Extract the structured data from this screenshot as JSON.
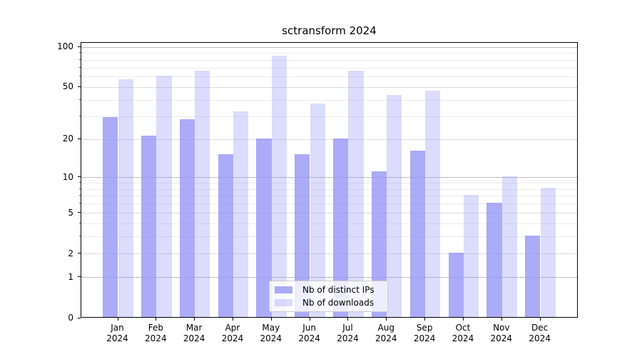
{
  "title": "sctransform 2024",
  "legend": {
    "items": [
      {
        "label": "Nb of distinct IPs",
        "color": "rgba(150,150,245,0.80)"
      },
      {
        "label": "Nb of downloads",
        "color": "rgba(150,150,245,0.33)"
      }
    ]
  },
  "chart_data": {
    "type": "bar",
    "title": "sctransform 2024",
    "categories": [
      "Jan",
      "Feb",
      "Mar",
      "Apr",
      "May",
      "Jun",
      "Jul",
      "Aug",
      "Sep",
      "Oct",
      "Nov",
      "Dec"
    ],
    "year_label": "2024",
    "series": [
      {
        "name": "Nb of distinct IPs",
        "color": "rgba(150,150,245,0.80)",
        "values": [
          29,
          21,
          28,
          15,
          20,
          15,
          20,
          11,
          16,
          2,
          6,
          3
        ]
      },
      {
        "name": "Nb of downloads",
        "color": "rgba(150,150,245,0.33)",
        "values": [
          56,
          60,
          65,
          32,
          85,
          37,
          65,
          43,
          46,
          7,
          10,
          8
        ]
      }
    ],
    "yscale": "log1p",
    "ylim": [
      0,
      108
    ],
    "y_major_ticks": [
      0,
      1,
      2,
      5,
      10,
      20,
      50,
      100
    ],
    "y_minor_ticks": [
      3,
      4,
      6,
      7,
      8,
      9,
      30,
      40,
      60,
      70,
      80,
      90
    ],
    "grid": "horizontal",
    "legend_position": "lower center",
    "xlabel": "",
    "ylabel": ""
  }
}
